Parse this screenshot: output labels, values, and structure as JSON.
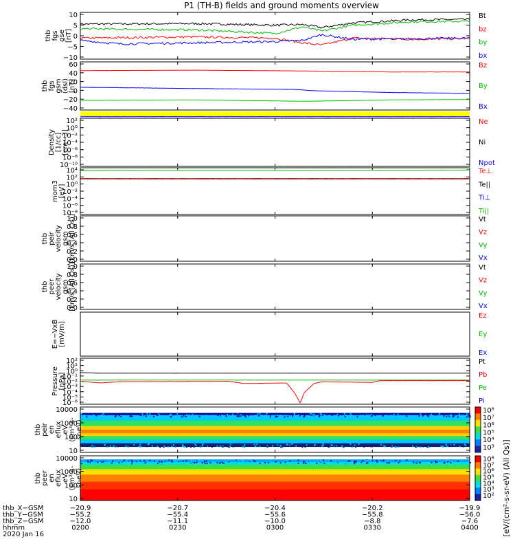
{
  "title": "P1 (TH-B) fields and ground moments overview",
  "colors": {
    "black": "#000000",
    "red": "#ff0000",
    "green": "#00c000",
    "blue": "#0000ff",
    "yellow": "#ffff00"
  },
  "chart_data": [
    {
      "type": "line",
      "ylabel": [
        "thb",
        "fgs",
        "gse",
        "[nT]"
      ],
      "ylim": [
        -10,
        10
      ],
      "yticks": [
        "10",
        "5",
        "0",
        "−5",
        "−10"
      ],
      "legend": [
        {
          "name": "Bt",
          "color": "black"
        },
        {
          "name": "bz",
          "color": "red"
        },
        {
          "name": "by",
          "color": "green"
        },
        {
          "name": "bx",
          "color": "blue"
        }
      ],
      "series": [
        {
          "name": "Bt",
          "color": "black",
          "points": [
            [
              0,
              5
            ],
            [
              0.3,
              5.2
            ],
            [
              0.5,
              4.5
            ],
            [
              0.57,
              4.8
            ],
            [
              0.62,
              3.5
            ],
            [
              0.7,
              5.5
            ],
            [
              0.85,
              6.8
            ],
            [
              1,
              7
            ]
          ]
        },
        {
          "name": "bz",
          "color": "red",
          "points": [
            [
              0,
              -1
            ],
            [
              0.3,
              -0.5
            ],
            [
              0.5,
              -1
            ],
            [
              0.57,
              -3
            ],
            [
              0.62,
              -4
            ],
            [
              0.7,
              -1
            ],
            [
              0.85,
              -1.5
            ],
            [
              1,
              -1.2
            ]
          ]
        },
        {
          "name": "by",
          "color": "green",
          "points": [
            [
              0,
              3
            ],
            [
              0.3,
              2.5
            ],
            [
              0.5,
              1
            ],
            [
              0.57,
              3.8
            ],
            [
              0.62,
              2
            ],
            [
              0.7,
              4.5
            ],
            [
              0.85,
              6
            ],
            [
              1,
              6.2
            ]
          ]
        },
        {
          "name": "bx",
          "color": "blue",
          "points": [
            [
              0,
              -2
            ],
            [
              0.1,
              -3.5
            ],
            [
              0.3,
              -3
            ],
            [
              0.5,
              -2.5
            ],
            [
              0.57,
              -2
            ],
            [
              0.62,
              0.5
            ],
            [
              0.7,
              -1.5
            ],
            [
              1,
              -1
            ]
          ]
        }
      ]
    },
    {
      "type": "line",
      "ylabel": [
        "thb",
        "fgs",
        "gsm",
        "(dsl)",
        "[nT]"
      ],
      "ylim": [
        -50,
        60
      ],
      "yticks": [
        "60",
        "40",
        "20",
        "0",
        "−20",
        "−40"
      ],
      "legend": [
        {
          "name": "Bz",
          "color": "red"
        },
        {
          "name": "By",
          "color": "green"
        },
        {
          "name": "Bx",
          "color": "blue"
        }
      ],
      "series": [
        {
          "name": "Bz",
          "color": "red",
          "points": [
            [
              0,
              40
            ],
            [
              0.3,
              41
            ],
            [
              0.6,
              39
            ],
            [
              0.8,
              37
            ],
            [
              1,
              37
            ]
          ]
        },
        {
          "name": "By",
          "color": "green",
          "points": [
            [
              0,
              -28
            ],
            [
              0.3,
              -27
            ],
            [
              0.58,
              -30
            ],
            [
              0.8,
              -27
            ],
            [
              1,
              -26
            ]
          ]
        },
        {
          "name": "Bx",
          "color": "blue",
          "points": [
            [
              0,
              2
            ],
            [
              0.3,
              -1
            ],
            [
              0.55,
              -3
            ],
            [
              0.6,
              -6
            ],
            [
              0.8,
              -10
            ],
            [
              1,
              -12
            ]
          ]
        }
      ]
    },
    {
      "type": "line",
      "ylabel": [
        "Density",
        "[1/cc]",
        "[cm−3]"
      ],
      "yticks": [
        "10²",
        "10⁰",
        "10⁻²",
        "10⁻⁴",
        "10⁻⁶",
        "10⁻⁸",
        "10⁻¹⁰"
      ],
      "legend": [
        {
          "name": "Ne",
          "color": "red"
        },
        {
          "name": "Ni",
          "color": "black"
        },
        {
          "name": "Npot",
          "color": "blue"
        }
      ],
      "series": [
        {
          "name": "Ni",
          "color": "black",
          "points": [
            [
              0,
              2.0
            ],
            [
              1,
              2.0
            ]
          ]
        },
        {
          "name": "Npot",
          "color": "blue",
          "points": [
            [
              0,
              2.4
            ],
            [
              1,
              2.4
            ]
          ]
        }
      ]
    },
    {
      "type": "line",
      "ylabel": [
        "mom3",
        "[eV]"
      ],
      "yticks": [
        "10⁴",
        "10²",
        "10⁰",
        "10⁻²",
        "10⁻⁴",
        "10⁻⁶",
        "10⁻⁸"
      ],
      "legend": [
        {
          "name": "Te⊥",
          "color": "red"
        },
        {
          "name": "Te||",
          "color": "black"
        },
        {
          "name": "Ti⊥",
          "color": "blue"
        },
        {
          "name": "Ti||",
          "color": "green"
        }
      ],
      "series": [
        {
          "name": "Ti||",
          "color": "green",
          "points": [
            [
              0,
              3.3
            ],
            [
              1,
              3.4
            ]
          ]
        },
        {
          "name": "Te||",
          "color": "black",
          "points": [
            [
              0,
              1.2
            ],
            [
              1,
              1.2
            ]
          ]
        },
        {
          "name": "Te⊥",
          "color": "red",
          "points": [
            [
              0,
              1.1
            ],
            [
              1,
              1.1
            ]
          ]
        }
      ]
    },
    {
      "type": "line",
      "ylabel": [
        "thb",
        "peir",
        "velocity",
        "gsm",
        "[km/s (All Qs)]"
      ],
      "ylim": [
        0,
        1
      ],
      "yticks": [
        "1.0",
        "0.8",
        "0.6",
        "0.4",
        "0.2",
        "0.0"
      ],
      "legend": [
        {
          "name": "Vt",
          "color": "black"
        },
        {
          "name": "Vz",
          "color": "red"
        },
        {
          "name": "Vy",
          "color": "green"
        },
        {
          "name": "Vx",
          "color": "blue"
        }
      ],
      "series": []
    },
    {
      "type": "line",
      "ylabel": [
        "thb",
        "peer",
        "velocity",
        "gsm",
        "[km/s (All Qs)]"
      ],
      "ylim": [
        0,
        1
      ],
      "yticks": [
        "1.0",
        "0.8",
        "0.6",
        "0.4",
        "0.2",
        "0.0"
      ],
      "legend": [
        {
          "name": "Vt",
          "color": "black"
        },
        {
          "name": "Vz",
          "color": "red"
        },
        {
          "name": "Vy",
          "color": "green"
        },
        {
          "name": "Vx",
          "color": "blue"
        }
      ],
      "series": []
    },
    {
      "type": "line",
      "ylabel": [
        "E=−VxB",
        "[mV/m]"
      ],
      "legend": [
        {
          "name": "Ez",
          "color": "red"
        },
        {
          "name": "Ey",
          "color": "green"
        },
        {
          "name": "Ex",
          "color": "blue"
        }
      ],
      "series": []
    },
    {
      "type": "line",
      "ylabel": [
        "Pressure",
        "[nPa]"
      ],
      "yticks": [
        "10²",
        "10¹",
        "10⁰",
        "10⁻¹",
        "10⁻²",
        "10⁻³",
        "10⁻⁴",
        "10⁻⁵",
        "10⁻⁶"
      ],
      "legend": [
        {
          "name": "Pt",
          "color": "black"
        },
        {
          "name": "Pb",
          "color": "red"
        },
        {
          "name": "Pe",
          "color": "green"
        },
        {
          "name": "Pi",
          "color": "blue"
        }
      ],
      "series": [
        {
          "name": "Pt",
          "color": "black",
          "points": [
            [
              0,
              -0.5
            ],
            [
              0.05,
              -0.6
            ],
            [
              0.3,
              -0.6
            ],
            [
              0.6,
              -0.6
            ],
            [
              1,
              -0.6
            ]
          ]
        },
        {
          "name": "Pe",
          "color": "green",
          "points": [
            [
              0,
              -1.8
            ],
            [
              1,
              -1.8
            ]
          ]
        },
        {
          "name": "Pb",
          "color": "red",
          "points": [
            [
              0,
              -2
            ],
            [
              0.05,
              -2.3
            ],
            [
              0.1,
              -2.1
            ],
            [
              0.38,
              -2
            ],
            [
              0.42,
              -2.4
            ],
            [
              0.53,
              -2.3
            ],
            [
              0.55,
              -4
            ],
            [
              0.565,
              -5.8
            ],
            [
              0.575,
              -4
            ],
            [
              0.6,
              -2.4
            ],
            [
              0.62,
              -2.1
            ],
            [
              0.75,
              -2.2
            ],
            [
              0.77,
              -1.9
            ],
            [
              1,
              -1.9
            ]
          ]
        }
      ]
    },
    {
      "type": "heatmap",
      "ylabel": [
        "thb",
        "peir",
        "en",
        "eflux",
        "eV",
        "(cm²-s-",
        "sr-eV)"
      ],
      "yticks": [
        "10000",
        "1000",
        "100",
        "10"
      ],
      "colorbar": {
        "ticks": [
          "10⁸",
          "10⁷",
          "10⁶",
          "10⁵",
          "10⁴",
          "10³"
        ],
        "label": "[eV/(cm²-s-sr-eV) (All Qs)]"
      }
    },
    {
      "type": "heatmap",
      "ylabel": [
        "thb",
        "peer",
        "en",
        "eflux",
        "eV",
        "(cm²-s-",
        "sr-eV)"
      ],
      "yticks": [
        "10000",
        "1000",
        "100",
        "10"
      ],
      "colorbar": {
        "ticks": [
          "10⁸",
          "10⁷",
          "10⁶",
          "10⁵",
          "10⁴",
          "10³",
          "10²"
        ],
        "label": "[eV/(cm²-s-sr-eV) (All Qs)]"
      }
    }
  ],
  "xaxis": {
    "rows": [
      {
        "label": "thb_X−GSM",
        "values": [
          "−20.9",
          "−20.7",
          "−20.4",
          "−20.2",
          "−19.9"
        ]
      },
      {
        "label": "thb_Y−GSM",
        "values": [
          "−55.2",
          "−55.4",
          "−55.6",
          "−55.8",
          "−56.0"
        ]
      },
      {
        "label": "thb_Z−GSM",
        "values": [
          "−12.0",
          "−11.1",
          "−10.0",
          "−8.8",
          "−7.6"
        ]
      },
      {
        "label": "hhmm",
        "values": [
          "0200",
          "0230",
          "0300",
          "0330",
          "0400"
        ]
      }
    ],
    "date": "2020 Jan 16"
  }
}
